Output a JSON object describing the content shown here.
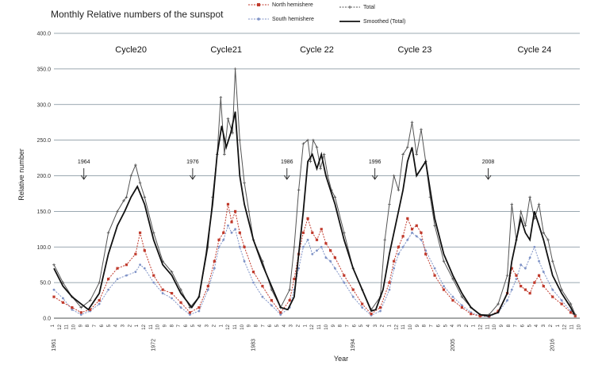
{
  "chart_data": {
    "type": "line",
    "title": "Monthly  Relative  numbers  of  the sunspot",
    "xlabel": "Year",
    "ylabel": "Relative number",
    "ylim": [
      0,
      400
    ],
    "xlim": [
      1961,
      2019
    ],
    "y_ticks": [
      "0.0",
      "50.0",
      "100.0",
      "150.0",
      "200.0",
      "250.0",
      "300.0",
      "350.0",
      "400.0"
    ],
    "x_year_ticks": [
      {
        "label": "1961",
        "year": 1961.0
      },
      {
        "label": "1972",
        "year": 1972.0
      },
      {
        "label": "1983",
        "year": 1983.0
      },
      {
        "label": "1994",
        "year": 1994.0
      },
      {
        "label": "2005",
        "year": 2005.0
      },
      {
        "label": "2016",
        "year": 2016.0
      }
    ],
    "x_month_labels": [
      "1",
      "12",
      "11",
      "10",
      "9",
      "8",
      "7",
      "6",
      "5",
      "4",
      "3",
      "2",
      "1",
      "12",
      "11",
      "10",
      "9",
      "8",
      "7",
      "6",
      "5",
      "4",
      "3",
      "2",
      "1",
      "12",
      "11",
      "10",
      "9",
      "8",
      "7",
      "6",
      "5",
      "4",
      "3",
      "2",
      "1",
      "12",
      "11",
      "10",
      "9",
      "8",
      "7",
      "6",
      "5",
      "4",
      "3",
      "2",
      "1",
      "12",
      "11",
      "10",
      "9",
      "8",
      "7",
      "6",
      "5",
      "4",
      "3",
      "2",
      "1",
      "12",
      "11",
      "10",
      "9",
      "8",
      "7",
      "6",
      "5",
      "4",
      "3",
      "2",
      "1",
      "12",
      "11",
      "10"
    ],
    "grid": true,
    "legend_position": "top",
    "legend": [
      {
        "label": "North hemishere",
        "color": "#c0392b",
        "marker": "square"
      },
      {
        "label": "Total",
        "color": "#555555",
        "marker": "plus"
      },
      {
        "label": "South hemishere",
        "color": "#7f93c7",
        "marker": "dot"
      },
      {
        "label": "Smoothed (Total)",
        "color": "#111111",
        "marker": "line"
      }
    ],
    "cycle_labels": [
      {
        "label": "Cycle20",
        "year": 1969.5
      },
      {
        "label": "Cycle21",
        "year": 1980.0
      },
      {
        "label": "Cycle 22",
        "year": 1990.0
      },
      {
        "label": "Cycle 23",
        "year": 2000.8
      },
      {
        "label": "Cycle 24",
        "year": 2014.0
      }
    ],
    "minimum_markers": [
      {
        "label": "1964",
        "year": 1964.3
      },
      {
        "label": "1976",
        "year": 1976.3
      },
      {
        "label": "1986",
        "year": 1986.7
      },
      {
        "label": "1996",
        "year": 1996.4
      },
      {
        "label": "2008",
        "year": 2008.9
      }
    ],
    "series": [
      {
        "name": "Smoothed (Total)",
        "color": "#111111",
        "x": [
          1961.0,
          1962.0,
          1963.0,
          1964.0,
          1964.8,
          1966.0,
          1967.0,
          1968.0,
          1968.8,
          1969.5,
          1970.2,
          1971.0,
          1972.0,
          1973.0,
          1974.0,
          1975.0,
          1976.2,
          1977.0,
          1977.8,
          1978.5,
          1979.0,
          1979.5,
          1980.0,
          1980.5,
          1981.0,
          1981.5,
          1982.0,
          1983.0,
          1984.0,
          1985.0,
          1986.0,
          1986.8,
          1987.5,
          1988.0,
          1988.5,
          1989.0,
          1989.5,
          1990.0,
          1990.5,
          1991.0,
          1991.5,
          1992.0,
          1993.0,
          1994.0,
          1995.0,
          1996.0,
          1996.5,
          1997.3,
          1998.0,
          1999.0,
          1999.5,
          2000.0,
          2000.5,
          2001.0,
          2001.5,
          2002.0,
          2003.0,
          2004.0,
          2005.0,
          2006.0,
          2007.0,
          2008.0,
          2008.9,
          2010.0,
          2011.0,
          2011.5,
          2012.0,
          2012.5,
          2013.0,
          2013.5,
          2014.0,
          2014.5,
          2015.0,
          2016.0,
          2017.0,
          2018.0,
          2018.4
        ],
        "values": [
          70,
          45,
          30,
          20,
          12,
          35,
          90,
          130,
          150,
          170,
          185,
          160,
          110,
          75,
          60,
          35,
          15,
          30,
          90,
          160,
          230,
          270,
          240,
          260,
          290,
          200,
          160,
          110,
          75,
          45,
          15,
          12,
          30,
          90,
          150,
          220,
          230,
          210,
          230,
          200,
          180,
          160,
          110,
          70,
          40,
          10,
          12,
          40,
          90,
          150,
          180,
          220,
          240,
          200,
          210,
          220,
          140,
          90,
          60,
          35,
          15,
          5,
          3,
          8,
          35,
          80,
          110,
          140,
          120,
          110,
          150,
          130,
          110,
          60,
          35,
          15,
          5
        ]
      },
      {
        "name": "Total",
        "color": "#555555",
        "x": [
          1961.0,
          1962.0,
          1963.0,
          1964.0,
          1965.0,
          1966.0,
          1967.0,
          1968.0,
          1968.7,
          1969.0,
          1969.5,
          1970.0,
          1970.5,
          1971.0,
          1972.0,
          1973.0,
          1974.0,
          1975.0,
          1976.0,
          1977.0,
          1978.0,
          1978.5,
          1979.0,
          1979.4,
          1979.8,
          1980.2,
          1980.7,
          1981.0,
          1981.5,
          1982.0,
          1982.5,
          1983.0,
          1984.0,
          1985.0,
          1986.0,
          1987.0,
          1987.5,
          1988.0,
          1988.5,
          1989.0,
          1989.3,
          1989.6,
          1990.0,
          1990.4,
          1990.8,
          1991.2,
          1991.6,
          1992.0,
          1993.0,
          1994.0,
          1995.0,
          1996.0,
          1997.0,
          1997.5,
          1998.0,
          1998.5,
          1999.0,
          1999.5,
          2000.0,
          2000.5,
          2001.0,
          2001.5,
          2002.0,
          2002.5,
          2003.0,
          2004.0,
          2005.0,
          2006.0,
          2007.0,
          2008.0,
          2009.0,
          2010.0,
          2011.0,
          2011.5,
          2012.0,
          2012.5,
          2013.0,
          2013.5,
          2014.0,
          2014.5,
          2015.0,
          2015.5,
          2016.0,
          2017.0,
          2018.0,
          2018.5
        ],
        "values": [
          75,
          50,
          30,
          15,
          25,
          50,
          120,
          150,
          165,
          170,
          200,
          215,
          190,
          170,
          120,
          80,
          65,
          40,
          15,
          30,
          100,
          170,
          230,
          310,
          230,
          280,
          260,
          350,
          250,
          190,
          150,
          110,
          80,
          40,
          15,
          40,
          100,
          180,
          245,
          250,
          220,
          250,
          240,
          210,
          230,
          200,
          180,
          170,
          120,
          70,
          40,
          12,
          30,
          110,
          160,
          200,
          180,
          230,
          240,
          275,
          230,
          265,
          220,
          170,
          130,
          80,
          55,
          30,
          15,
          5,
          5,
          20,
          60,
          160,
          110,
          150,
          130,
          170,
          140,
          160,
          120,
          110,
          80,
          40,
          20,
          5
        ]
      },
      {
        "name": "North hemishere",
        "color": "#c0392b",
        "x": [
          1961.0,
          1962.0,
          1963.0,
          1964.0,
          1965.0,
          1966.0,
          1967.0,
          1968.0,
          1969.0,
          1970.0,
          1970.5,
          1971.0,
          1972.0,
          1973.0,
          1974.0,
          1975.0,
          1976.0,
          1977.0,
          1978.0,
          1978.7,
          1979.2,
          1979.7,
          1980.2,
          1980.6,
          1981.0,
          1981.5,
          1982.0,
          1983.0,
          1984.0,
          1985.0,
          1986.0,
          1987.0,
          1987.5,
          1988.0,
          1988.5,
          1989.0,
          1989.5,
          1990.0,
          1990.5,
          1991.0,
          1991.5,
          1992.0,
          1993.0,
          1994.0,
          1995.0,
          1996.0,
          1997.0,
          1998.0,
          1998.5,
          1999.0,
          1999.5,
          2000.0,
          2000.5,
          2001.0,
          2001.5,
          2002.0,
          2003.0,
          2004.0,
          2005.0,
          2006.0,
          2007.0,
          2008.0,
          2009.0,
          2010.0,
          2011.0,
          2011.5,
          2012.0,
          2012.5,
          2013.0,
          2013.5,
          2014.0,
          2014.5,
          2015.0,
          2016.0,
          2017.0,
          2018.0,
          2018.5
        ],
        "values": [
          30,
          22,
          15,
          8,
          12,
          25,
          55,
          70,
          75,
          90,
          120,
          95,
          60,
          40,
          35,
          22,
          8,
          15,
          45,
          80,
          110,
          120,
          160,
          135,
          150,
          120,
          100,
          65,
          45,
          25,
          8,
          25,
          55,
          90,
          120,
          140,
          120,
          110,
          125,
          105,
          95,
          85,
          60,
          40,
          20,
          6,
          15,
          50,
          80,
          100,
          115,
          140,
          125,
          130,
          120,
          90,
          60,
          40,
          25,
          15,
          6,
          3,
          3,
          10,
          35,
          70,
          60,
          45,
          40,
          35,
          50,
          60,
          45,
          30,
          20,
          8,
          3
        ]
      },
      {
        "name": "South hemishere",
        "color": "#7f93c7",
        "x": [
          1961.0,
          1962.0,
          1963.0,
          1964.0,
          1965.0,
          1966.0,
          1967.0,
          1968.0,
          1969.0,
          1970.0,
          1970.5,
          1971.0,
          1972.0,
          1973.0,
          1974.0,
          1975.0,
          1976.0,
          1977.0,
          1978.0,
          1978.7,
          1979.2,
          1979.7,
          1980.2,
          1980.6,
          1981.0,
          1981.5,
          1982.0,
          1983.0,
          1984.0,
          1985.0,
          1986.0,
          1987.0,
          1987.5,
          1988.0,
          1988.5,
          1989.0,
          1989.5,
          1990.0,
          1990.5,
          1991.0,
          1991.5,
          1992.0,
          1993.0,
          1994.0,
          1995.0,
          1996.0,
          1997.0,
          1998.0,
          1998.5,
          1999.0,
          1999.5,
          2000.0,
          2000.5,
          2001.0,
          2001.5,
          2002.0,
          2003.0,
          2004.0,
          2005.0,
          2006.0,
          2007.0,
          2008.0,
          2009.0,
          2010.0,
          2011.0,
          2011.5,
          2012.0,
          2012.5,
          2013.0,
          2013.5,
          2014.0,
          2014.5,
          2015.0,
          2016.0,
          2017.0,
          2018.0,
          2018.5
        ],
        "values": [
          40,
          28,
          12,
          5,
          10,
          20,
          40,
          55,
          60,
          65,
          75,
          70,
          50,
          35,
          28,
          15,
          5,
          10,
          40,
          70,
          100,
          110,
          130,
          120,
          125,
          100,
          80,
          50,
          30,
          18,
          5,
          15,
          40,
          70,
          100,
          110,
          90,
          95,
          100,
          85,
          80,
          70,
          50,
          30,
          15,
          4,
          10,
          40,
          70,
          90,
          100,
          110,
          120,
          115,
          110,
          95,
          70,
          45,
          30,
          18,
          8,
          3,
          2,
          8,
          25,
          40,
          55,
          75,
          70,
          85,
          100,
          80,
          65,
          40,
          25,
          10,
          3
        ]
      }
    ]
  }
}
